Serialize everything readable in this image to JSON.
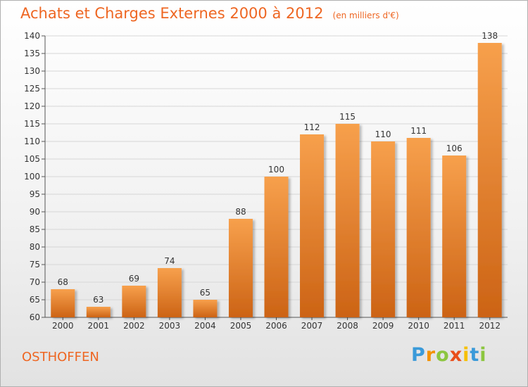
{
  "header": {
    "title": "Achats et Charges Externes 2000 à 2012",
    "unit": "(en milliers d'€)"
  },
  "footer": {
    "commune": "OSTHOFFEN",
    "logo_letters": [
      "P",
      "r",
      "o",
      "x",
      "i",
      "t",
      "i"
    ],
    "logo_colors": [
      "#3a9ad9",
      "#f39200",
      "#8cc63f",
      "#e94e1b",
      "#f6c000",
      "#3a9ad9",
      "#8cc63f"
    ]
  },
  "chart_data": {
    "type": "bar",
    "categories": [
      "2000",
      "2001",
      "2002",
      "2003",
      "2004",
      "2005",
      "2006",
      "2007",
      "2008",
      "2009",
      "2010",
      "2011",
      "2012"
    ],
    "values": [
      68,
      63,
      69,
      74,
      65,
      88,
      100,
      112,
      115,
      110,
      111,
      106,
      138
    ],
    "title": "Achats et Charges Externes 2000 à 2012",
    "ylim": [
      60,
      140
    ],
    "yticks": [
      60,
      65,
      70,
      75,
      80,
      85,
      90,
      95,
      100,
      105,
      110,
      115,
      120,
      125,
      130,
      135,
      140
    ],
    "grid": true,
    "bar_color_top": "#f7a04c",
    "bar_color_bottom": "#cc6315"
  }
}
